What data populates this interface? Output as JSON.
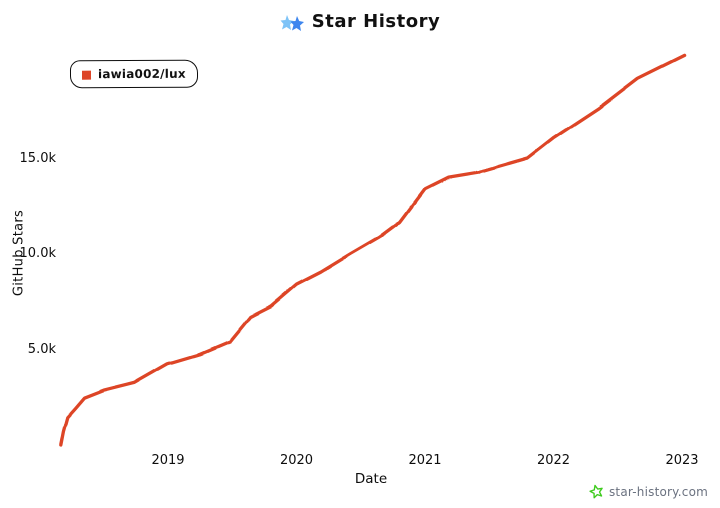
{
  "header": {
    "title": "Star History",
    "logo_icon": "star-history-logo-icon",
    "logo_colors": [
      "#7ec3f7",
      "#2e7ced",
      "#19b5d8"
    ]
  },
  "legend": {
    "items": [
      {
        "label": "iawia002/lux",
        "color": "#dd4528"
      }
    ]
  },
  "chart_data": {
    "type": "line",
    "title": "Star History",
    "xlabel": "Date",
    "ylabel": "GitHub Stars",
    "legend_position": "top-left",
    "grid": false,
    "xlim": [
      2018.15,
      2023.07
    ],
    "ylim": [
      0,
      20800
    ],
    "x_ticks": [
      {
        "label": "2019",
        "value": 2019
      },
      {
        "label": "2020",
        "value": 2020
      },
      {
        "label": "2021",
        "value": 2021
      },
      {
        "label": "2022",
        "value": 2022
      },
      {
        "label": "2023",
        "value": 2023
      }
    ],
    "y_ticks": [
      {
        "label": "5.0k",
        "value": 5000
      },
      {
        "label": "10.0k",
        "value": 10000
      },
      {
        "label": "15.0k",
        "value": 15000
      }
    ],
    "series": [
      {
        "name": "iawia002/lux",
        "color": "#dd4528",
        "points": [
          [
            2018.17,
            0
          ],
          [
            2018.19,
            700
          ],
          [
            2018.22,
            1450
          ],
          [
            2018.28,
            1900
          ],
          [
            2018.35,
            2450
          ],
          [
            2018.5,
            2850
          ],
          [
            2018.74,
            3250
          ],
          [
            2019.0,
            4250
          ],
          [
            2019.25,
            4750
          ],
          [
            2019.48,
            5400
          ],
          [
            2019.64,
            6700
          ],
          [
            2019.8,
            7250
          ],
          [
            2020.0,
            8400
          ],
          [
            2020.19,
            9050
          ],
          [
            2020.42,
            10000
          ],
          [
            2020.65,
            10900
          ],
          [
            2020.81,
            11700
          ],
          [
            2021.0,
            13400
          ],
          [
            2021.18,
            14000
          ],
          [
            2021.41,
            14250
          ],
          [
            2021.8,
            15000
          ],
          [
            2022.0,
            16050
          ],
          [
            2022.35,
            17600
          ],
          [
            2022.66,
            19200
          ],
          [
            2023.02,
            20400
          ]
        ]
      }
    ]
  },
  "watermark": {
    "text": "star-history.com",
    "icon": "star-icon",
    "icon_color": "#3ecb1e",
    "text_color": "#6b7280"
  }
}
